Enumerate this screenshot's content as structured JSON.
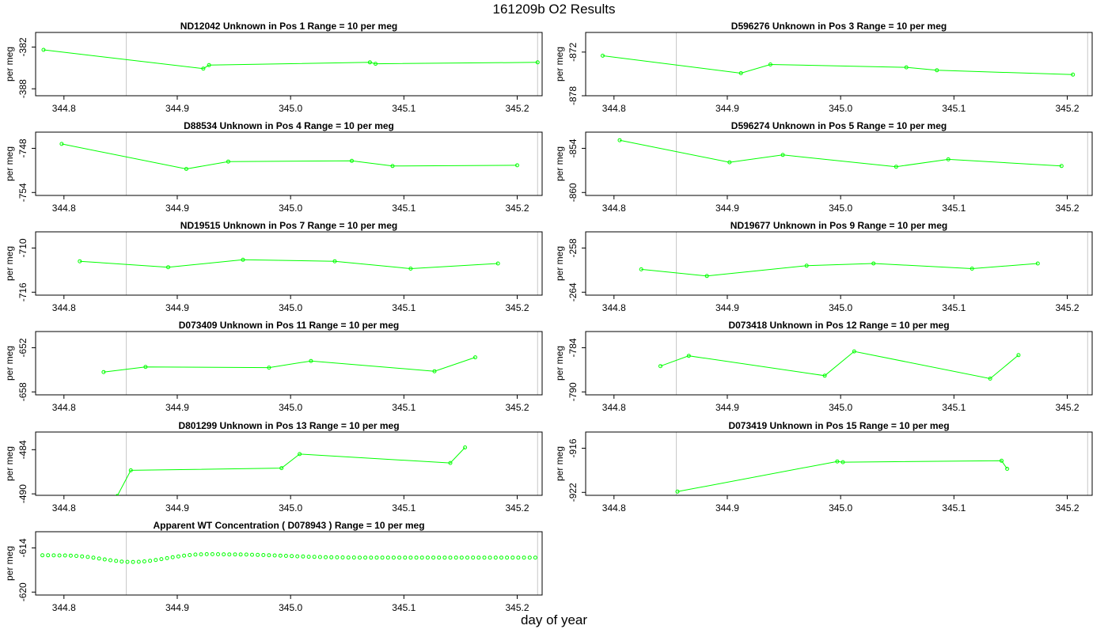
{
  "page": {
    "title": "161209b  O2 Results",
    "xlabel": "day of year"
  },
  "style": {
    "line_color": "#00ff00",
    "vline_color": "#c8c8c8",
    "axis_color": "#000000"
  },
  "chart_data": [
    {
      "type": "line",
      "title": "ND12042    Unknown in Pos 1         Range = 10 per meg",
      "ylabel": "per meg",
      "xlim": [
        344.775,
        345.222
      ],
      "ylim": [
        -389.0,
        -379.9
      ],
      "yticks": [
        -382,
        -388
      ],
      "xticks": [
        344.8,
        344.9,
        345.0,
        345.1,
        345.2
      ],
      "vlines": [
        344.855,
        345.218
      ],
      "x": [
        344.782,
        344.923,
        344.928,
        345.07,
        345.075,
        345.218
      ],
      "y": [
        -382.4,
        -385.1,
        -384.6,
        -384.2,
        -384.4,
        -384.2
      ]
    },
    {
      "type": "line",
      "title": "D596276    Unknown in Pos 3         Range = 10 per meg",
      "ylabel": "per meg",
      "xlim": [
        344.775,
        345.222
      ],
      "ylim": [
        -878.0,
        -869.3
      ],
      "yticks": [
        -872,
        -878
      ],
      "xticks": [
        344.8,
        344.9,
        345.0,
        345.1,
        345.2
      ],
      "vlines": [
        344.855,
        345.218
      ],
      "x": [
        344.79,
        344.912,
        344.938,
        345.058,
        345.085,
        345.205
      ],
      "y": [
        -872.5,
        -874.9,
        -873.7,
        -874.1,
        -874.5,
        -875.1
      ]
    },
    {
      "type": "line",
      "title": "D88534    Unknown in Pos 4         Range = 10 per meg",
      "ylabel": "per meg",
      "xlim": [
        344.775,
        345.222
      ],
      "ylim": [
        -754.4,
        -745.8
      ],
      "yticks": [
        -748,
        -754
      ],
      "xticks": [
        344.8,
        344.9,
        345.0,
        345.1,
        345.2
      ],
      "vlines": [
        344.855,
        345.218
      ],
      "x": [
        344.798,
        344.908,
        344.945,
        345.054,
        345.09,
        345.2
      ],
      "y": [
        -747.4,
        -750.8,
        -749.8,
        -749.7,
        -750.4,
        -750.3
      ]
    },
    {
      "type": "line",
      "title": "D596274    Unknown in Pos 5         Range = 10 per meg",
      "ylabel": "per meg",
      "xlim": [
        344.775,
        345.222
      ],
      "ylim": [
        -860.4,
        -851.8
      ],
      "yticks": [
        -854,
        -860
      ],
      "xticks": [
        344.8,
        344.9,
        345.0,
        345.1,
        345.2
      ],
      "vlines": [
        344.855,
        345.218
      ],
      "x": [
        344.805,
        344.902,
        344.949,
        345.049,
        345.095,
        345.195
      ],
      "y": [
        -852.9,
        -855.9,
        -854.9,
        -856.5,
        -855.5,
        -856.4
      ]
    },
    {
      "type": "line",
      "title": "ND19515    Unknown in Pos 7         Range = 10 per meg",
      "ylabel": "per meg",
      "xlim": [
        344.775,
        345.222
      ],
      "ylim": [
        -716.4,
        -707.8
      ],
      "yticks": [
        -710,
        -716
      ],
      "xticks": [
        344.8,
        344.9,
        345.0,
        345.1,
        345.2
      ],
      "vlines": [
        344.855,
        345.218
      ],
      "x": [
        344.814,
        344.892,
        344.958,
        345.039,
        345.106,
        345.183
      ],
      "y": [
        -711.8,
        -712.6,
        -711.6,
        -711.8,
        -712.8,
        -712.1
      ]
    },
    {
      "type": "line",
      "title": "ND19677    Unknown in Pos 9         Range = 10 per meg",
      "ylabel": "per meg",
      "xlim": [
        344.775,
        345.222
      ],
      "ylim": [
        -264.4,
        -255.8
      ],
      "yticks": [
        -258,
        -264
      ],
      "xticks": [
        344.8,
        344.9,
        345.0,
        345.1,
        345.2
      ],
      "vlines": [
        344.855,
        345.218
      ],
      "x": [
        344.824,
        344.882,
        344.97,
        345.029,
        345.116,
        345.174
      ],
      "y": [
        -260.9,
        -261.8,
        -260.4,
        -260.1,
        -260.8,
        -260.1
      ]
    },
    {
      "type": "line",
      "title": "D073409    Unknown in Pos 11         Range = 10 per meg",
      "ylabel": "per meg",
      "xlim": [
        344.775,
        345.222
      ],
      "ylim": [
        -658.4,
        -649.8
      ],
      "yticks": [
        -652,
        -658
      ],
      "xticks": [
        344.8,
        344.9,
        345.0,
        345.1,
        345.2
      ],
      "vlines": [
        344.855,
        345.218
      ],
      "x": [
        344.835,
        344.872,
        344.981,
        345.018,
        345.127,
        345.163
      ],
      "y": [
        -655.3,
        -654.6,
        -654.7,
        -653.8,
        -655.2,
        -653.3
      ]
    },
    {
      "type": "line",
      "title": "D073418    Unknown in Pos 12         Range = 10 per meg",
      "ylabel": "per meg",
      "xlim": [
        344.775,
        345.222
      ],
      "ylim": [
        -790.4,
        -781.8
      ],
      "yticks": [
        -784,
        -790
      ],
      "xticks": [
        344.8,
        344.9,
        345.0,
        345.1,
        345.2
      ],
      "vlines": [
        344.855,
        345.218
      ],
      "x": [
        344.841,
        344.866,
        344.986,
        345.012,
        345.132,
        345.157
      ],
      "y": [
        -786.5,
        -785.1,
        -787.8,
        -784.5,
        -788.2,
        -785.0
      ]
    },
    {
      "type": "line",
      "title": "D801299    Unknown in Pos 13         Range = 10 per meg",
      "ylabel": "per meg",
      "xlim": [
        344.775,
        345.222
      ],
      "ylim": [
        -490.2,
        -481.6
      ],
      "yticks": [
        -484,
        -490
      ],
      "xticks": [
        344.8,
        344.9,
        345.0,
        345.1,
        345.2
      ],
      "vlines": [
        344.855,
        345.218
      ],
      "x": [
        344.847,
        344.859,
        344.992,
        345.008,
        345.141,
        345.154
      ],
      "y": [
        -490.3,
        -486.8,
        -486.5,
        -484.6,
        -485.8,
        -483.7
      ]
    },
    {
      "type": "line",
      "title": "D073419    Unknown in Pos 15         Range = 10 per meg",
      "ylabel": "per meg",
      "xlim": [
        344.775,
        345.222
      ],
      "ylim": [
        -922.4,
        -913.8
      ],
      "yticks": [
        -916,
        -922
      ],
      "xticks": [
        344.8,
        344.9,
        345.0,
        345.1,
        345.2
      ],
      "vlines": [
        344.855,
        345.218
      ],
      "x": [
        344.856,
        344.997,
        345.002,
        345.142,
        345.147
      ],
      "y": [
        -921.9,
        -917.8,
        -917.9,
        -917.7,
        -918.8
      ]
    },
    {
      "type": "scatter",
      "title": "Apparent WT Concentration ( D078943 )         Range = 10 per meg",
      "ylabel": "per meg",
      "xlim": [
        344.775,
        345.222
      ],
      "ylim": [
        -620.4,
        -611.8
      ],
      "yticks": [
        -614,
        -620
      ],
      "xticks": [
        344.8,
        344.9,
        345.0,
        345.1,
        345.2
      ],
      "vlines": [
        344.855,
        345.218
      ],
      "x0": 344.781,
      "dx": 0.005,
      "y": [
        -615.0,
        -615.0,
        -615.01,
        -615.02,
        -615.03,
        -615.05,
        -615.09,
        -615.15,
        -615.23,
        -615.33,
        -615.44,
        -615.56,
        -615.67,
        -615.77,
        -615.85,
        -615.9,
        -615.91,
        -615.89,
        -615.83,
        -615.75,
        -615.64,
        -615.52,
        -615.39,
        -615.26,
        -615.15,
        -615.05,
        -614.97,
        -614.91,
        -614.87,
        -614.85,
        -614.85,
        -614.86,
        -614.87,
        -614.88,
        -614.89,
        -614.9,
        -614.91,
        -614.93,
        -614.95,
        -614.97,
        -614.99,
        -615.02,
        -615.05,
        -615.08,
        -615.11,
        -615.14,
        -615.17,
        -615.2,
        -615.22,
        -615.24,
        -615.26,
        -615.27,
        -615.28,
        -615.29,
        -615.3,
        -615.3,
        -615.31,
        -615.31,
        -615.31,
        -615.31,
        -615.31,
        -615.31,
        -615.31,
        -615.31,
        -615.31,
        -615.31,
        -615.31,
        -615.31,
        -615.31,
        -615.31,
        -615.31,
        -615.31,
        -615.31,
        -615.31,
        -615.31,
        -615.31,
        -615.31,
        -615.31,
        -615.31,
        -615.31,
        -615.31,
        -615.31,
        -615.31,
        -615.31,
        -615.31,
        -615.31,
        -615.31,
        -615.31
      ]
    }
  ]
}
